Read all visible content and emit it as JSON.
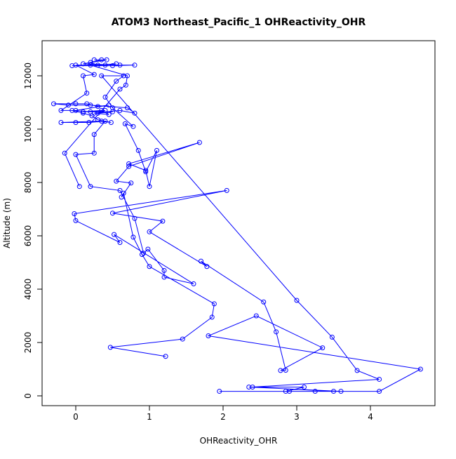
{
  "chart_data": {
    "type": "line",
    "title": "ATOM3 Northeast_Pacific_1 OHReactivity_OHR",
    "x_label": "OHReactivity_OHR",
    "y_label": "Altitude (m)",
    "color": "#0000ff",
    "markers": true,
    "xlim": [
      -0.457,
      4.876
    ],
    "ylim": [
      -368,
      13316
    ],
    "xticks": [
      0,
      1,
      2,
      3,
      4
    ],
    "yticks": [
      0,
      2000,
      4000,
      6000,
      8000,
      10000,
      12000
    ],
    "x": [
      1.22,
      0.47,
      1.45,
      1.85,
      1.88,
      1.0,
      0.9,
      0.78,
      0.65,
      0.62,
      0.75,
      0.55,
      0.72,
      1.68,
      0.72,
      0.95,
      1.0,
      1.1,
      0.95,
      0.85,
      0.67,
      0.78,
      0.5,
      0.4,
      0.55,
      0.65,
      0.35,
      3.0,
      3.48,
      3.82,
      4.12,
      2.4,
      3.5,
      3.6,
      2.35,
      3.1,
      2.85,
      2.9,
      3.25,
      1.95,
      4.12,
      4.68,
      1.8,
      2.45,
      3.35,
      2.78,
      2.85,
      2.72,
      2.55,
      1.7,
      1.78,
      1.0,
      1.18,
      0.5,
      2.05,
      -0.02,
      0.0,
      0.6,
      0.52,
      1.6,
      1.2,
      1.2,
      0.98,
      0.92,
      0.8,
      0.6,
      0.2,
      0.0,
      0.25,
      0.25,
      0.4,
      0.18,
      0.0,
      -0.2,
      0.35,
      0.48,
      0.3,
      0.22,
      0.1,
      -0.05,
      0.2,
      0.4,
      0.3,
      0.5,
      0.1,
      0.35,
      0.45,
      0.25,
      0.6,
      0.8,
      0.7,
      0.2,
      -0.1,
      -0.3,
      0.0,
      0.15,
      0.3,
      0.45,
      0.0,
      -0.2,
      0.15,
      0.1,
      0.25,
      0.0,
      0.4,
      0.55,
      0.3,
      0.2,
      0.35,
      0.25,
      0.42,
      0.1,
      0.6,
      0.8,
      0.5,
      -0.05,
      0.2,
      0.7,
      0.68,
      0.6,
      -0.15,
      0.05
    ],
    "values": [
      1480,
      1820,
      2130,
      2950,
      3450,
      4850,
      5300,
      5950,
      7600,
      7450,
      7980,
      8050,
      8600,
      9500,
      8700,
      8450,
      7850,
      9200,
      8400,
      9200,
      10200,
      10100,
      10800,
      11200,
      11800,
      12000,
      12000,
      3580,
      2200,
      950,
      620,
      330,
      170,
      170,
      330,
      330,
      170,
      170,
      170,
      170,
      170,
      1000,
      2250,
      3000,
      1800,
      950,
      960,
      2400,
      3520,
      5050,
      4850,
      6150,
      6550,
      6850,
      7700,
      6830,
      6570,
      5750,
      6050,
      4200,
      4450,
      4700,
      5500,
      5350,
      6650,
      7700,
      7850,
      9050,
      9100,
      9800,
      10300,
      10250,
      10250,
      10250,
      10300,
      10250,
      10350,
      10500,
      10600,
      10700,
      10650,
      10700,
      10600,
      10650,
      10650,
      10700,
      10550,
      10600,
      10700,
      10600,
      10800,
      10900,
      10900,
      10950,
      10950,
      10950,
      10850,
      10900,
      10700,
      10700,
      11350,
      12000,
      12050,
      12400,
      12400,
      12450,
      12400,
      12500,
      12600,
      12600,
      12600,
      12450,
      12400,
      12400,
      12380,
      12380,
      12400,
      12000,
      11650,
      11500,
      9100,
      7850
    ]
  }
}
